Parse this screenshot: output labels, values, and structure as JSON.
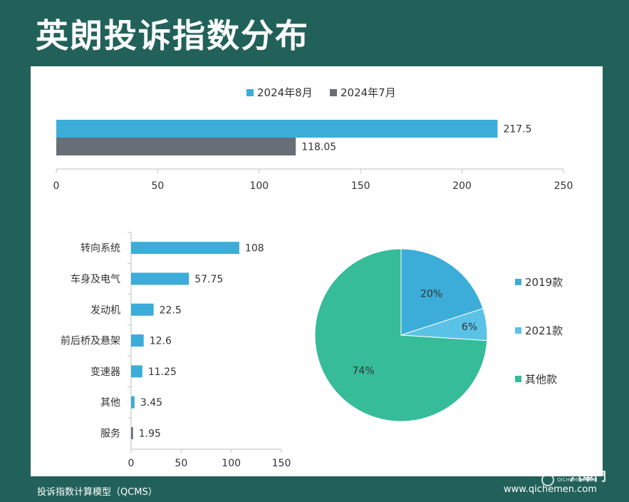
{
  "page": {
    "title": "英朗投诉指数分布",
    "footer_left": "投诉指数计算模型（QCMS）",
    "footer_right": "www.qichemen.com",
    "watermark_brand": "汽車門",
    "watermark_small": "QICHEMEN.COM"
  },
  "chart_data": [
    {
      "type": "bar",
      "orientation": "horizontal",
      "categories": [
        ""
      ],
      "series": [
        {
          "name": "2024年8月",
          "color": "#3badd8",
          "values": [
            217.5
          ]
        },
        {
          "name": "2024年7月",
          "color": "#686e78",
          "values": [
            118.05
          ]
        }
      ],
      "xlim": [
        0,
        250
      ],
      "xticks": [
        0,
        50,
        100,
        150,
        200,
        250
      ],
      "legend": "top",
      "grid": false
    },
    {
      "type": "bar",
      "orientation": "horizontal",
      "categories": [
        "转向系统",
        "车身及电气",
        "发动机",
        "前后桥及悬架",
        "变速器",
        "其他",
        "服务"
      ],
      "values": [
        108,
        57.75,
        22.5,
        12.6,
        11.25,
        3.45,
        1.95
      ],
      "value_labels": [
        "108",
        "57.75",
        "22.5",
        "12.6",
        "11.25",
        "3.45",
        "1.95"
      ],
      "colors": [
        "#3badd8",
        "#3badd8",
        "#3badd8",
        "#3badd8",
        "#3badd8",
        "#3badd8",
        "#686e78"
      ],
      "xlim": [
        0,
        150
      ],
      "xticks": [
        0,
        50,
        100,
        150
      ],
      "legend": "none",
      "grid": false
    },
    {
      "type": "pie",
      "categories": [
        "2019款",
        "2021款",
        "其他款"
      ],
      "values": [
        20,
        6,
        74
      ],
      "labels": [
        "20%",
        "6%",
        "74%"
      ],
      "colors": [
        "#3badd8",
        "#5bc2e7",
        "#36bc99"
      ],
      "legend": "right"
    }
  ]
}
